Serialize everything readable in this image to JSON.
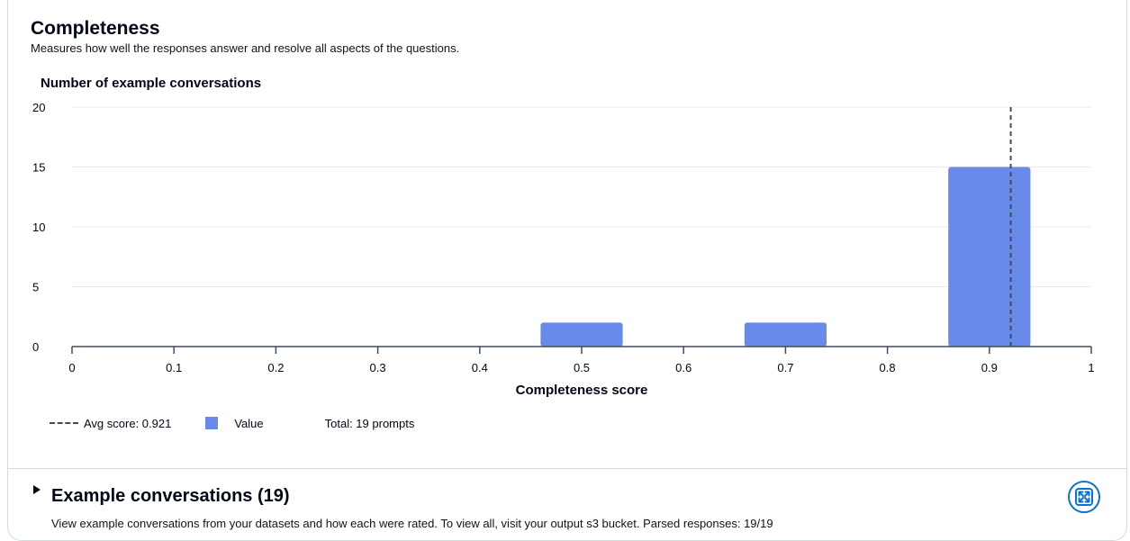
{
  "card": {
    "title": "Completeness",
    "description": "Measures how well the responses answer and resolve all aspects of the questions."
  },
  "chart_data": {
    "type": "bar",
    "title": "",
    "ylabel": "Number of example conversations",
    "xlabel": "Completeness score",
    "x_ticks": [
      "0",
      "0.1",
      "0.2",
      "0.3",
      "0.4",
      "0.5",
      "0.6",
      "0.7",
      "0.8",
      "0.9",
      "1"
    ],
    "y_ticks": [
      "0",
      "5",
      "10",
      "15",
      "20"
    ],
    "xlim": [
      0,
      1
    ],
    "ylim": [
      0,
      20
    ],
    "grid": true,
    "bars": [
      {
        "x": 0.5,
        "width": 0.1,
        "value": 2
      },
      {
        "x": 0.7,
        "width": 0.1,
        "value": 2
      },
      {
        "x": 0.9,
        "width": 0.1,
        "value": 15
      }
    ],
    "avg_line": {
      "x": 0.921,
      "label": "Avg score: 0.921"
    },
    "series": [
      {
        "name": "Value"
      }
    ],
    "total_label": "Total: 19 prompts",
    "colors": {
      "bar": "#688ae8",
      "avg_line": "#414d5c",
      "grid": "#e9ebed",
      "axis": "#414d5c"
    }
  },
  "legend": {
    "avg_label": "Avg score: 0.921",
    "value_label": "Value",
    "total_label": "Total: 19 prompts"
  },
  "examples": {
    "title": "Example conversations (19)",
    "description": "View example conversations from your datasets and how each were rated. To view all, visit your output s3 bucket. Parsed responses: 19/19"
  },
  "icons": {
    "expander": "caret-right-icon",
    "fullscreen": "expand-icon"
  }
}
